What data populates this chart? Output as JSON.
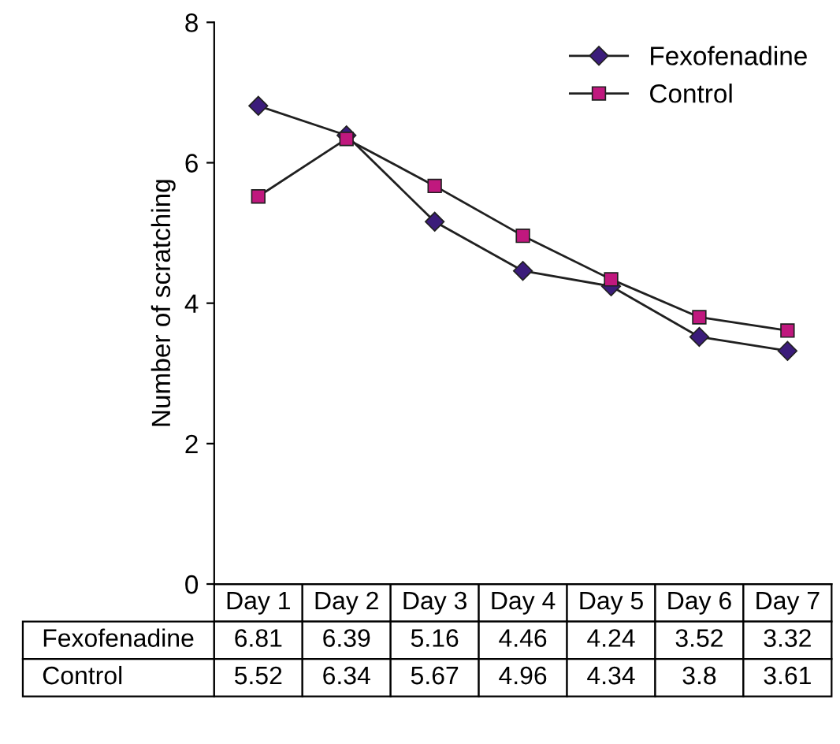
{
  "chart_data": {
    "type": "line",
    "ylabel": "Number of scratching",
    "categories": [
      "Day 1",
      "Day 2",
      "Day 3",
      "Day 4",
      "Day 5",
      "Day 6",
      "Day 7"
    ],
    "series": [
      {
        "name": "Fexofenadine",
        "color": "#3b1c7a",
        "marker": "diamond",
        "values": [
          6.81,
          6.39,
          5.16,
          4.46,
          4.24,
          3.52,
          3.32
        ]
      },
      {
        "name": "Control",
        "color": "#c0187e",
        "marker": "square",
        "values": [
          5.52,
          6.34,
          5.67,
          4.96,
          4.34,
          3.8,
          3.61
        ]
      }
    ],
    "ylim": [
      0,
      8
    ],
    "yticks": [
      0,
      2,
      4,
      6,
      8
    ],
    "grid": false,
    "legend": "top right",
    "data_labels": true,
    "line_style": "solid"
  }
}
